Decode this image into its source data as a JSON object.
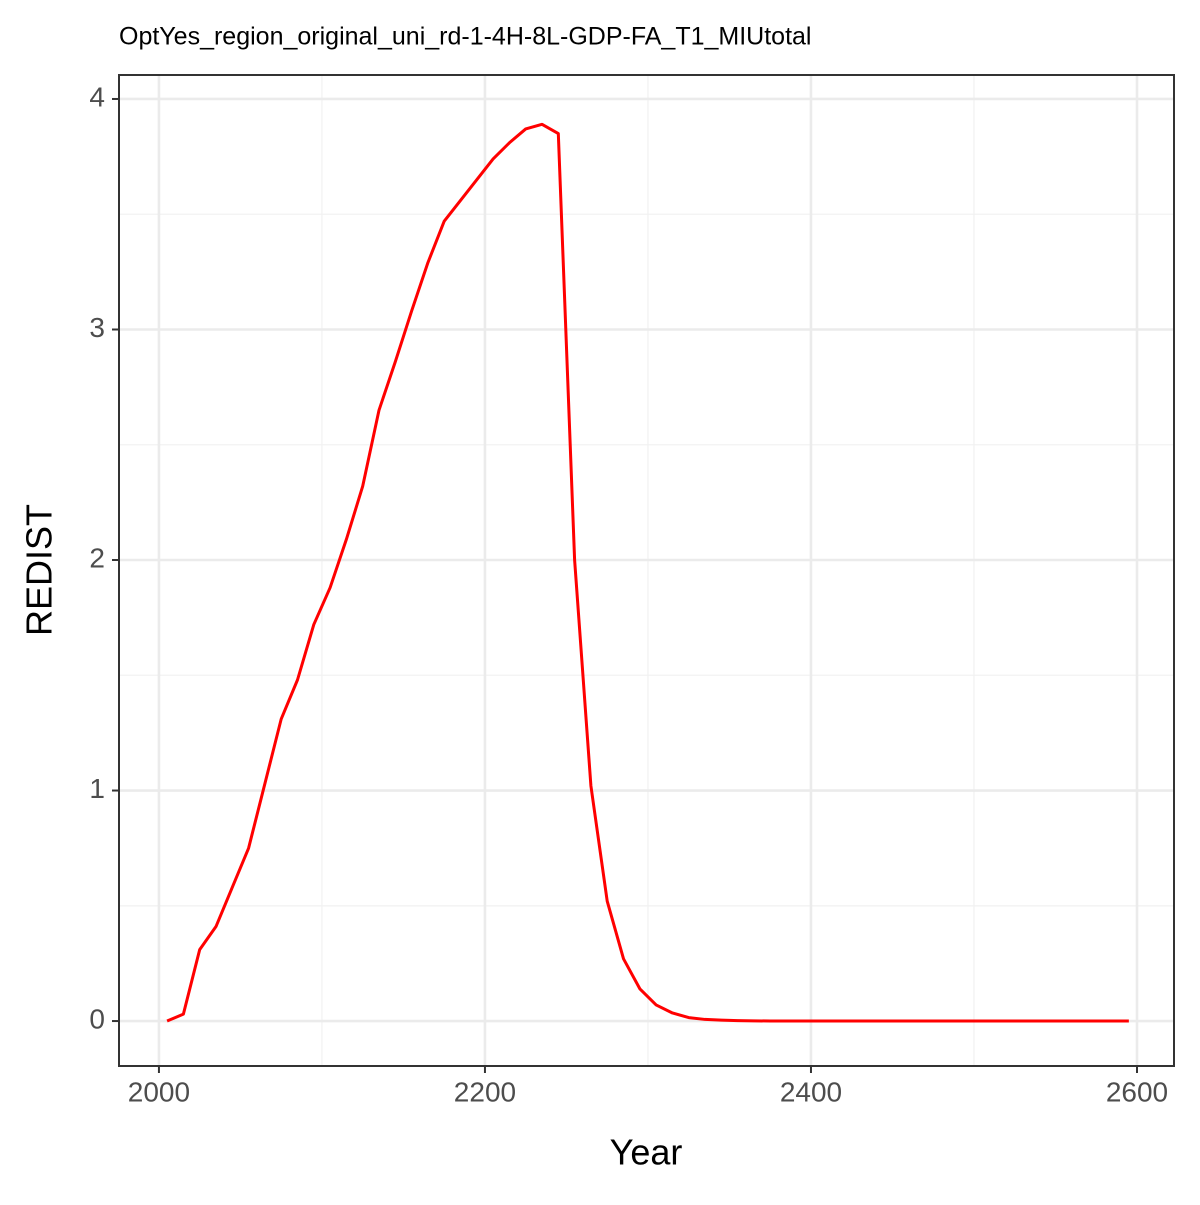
{
  "chart_data": {
    "type": "line",
    "title": "OptYes_region_original_uni_rd-1-4H-8L-GDP-FA_T1_MIUtotal",
    "x_label": "Year",
    "y_label": "REDIST",
    "x": [
      2005,
      2015,
      2025,
      2035,
      2045,
      2055,
      2065,
      2075,
      2085,
      2095,
      2105,
      2115,
      2125,
      2135,
      2145,
      2155,
      2165,
      2175,
      2185,
      2195,
      2205,
      2215,
      2225,
      2235,
      2245,
      2255,
      2265,
      2275,
      2285,
      2295,
      2305,
      2315,
      2325,
      2335,
      2345,
      2355,
      2365,
      2375,
      2385,
      2395,
      2405,
      2415,
      2425,
      2435,
      2445,
      2455,
      2465,
      2475,
      2485,
      2495,
      2505,
      2515,
      2525,
      2535,
      2545,
      2555,
      2565,
      2575,
      2585,
      2595
    ],
    "series": [
      {
        "color": "#ff0000",
        "values": [
          0,
          0.03,
          0.31,
          0.41,
          0.58,
          0.75,
          1.03,
          1.31,
          1.48,
          1.72,
          1.88,
          2.09,
          2.32,
          2.65,
          2.86,
          3.08,
          3.29,
          3.47,
          3.56,
          3.65,
          3.74,
          3.81,
          3.87,
          3.89,
          3.85,
          2.0,
          1.02,
          0.52,
          0.27,
          0.14,
          0.07,
          0.035,
          0.015,
          0.007,
          0.004,
          0.002,
          0.001,
          0,
          0,
          0,
          0,
          0,
          0,
          0,
          0,
          0,
          0,
          0,
          0,
          0,
          0,
          0,
          0,
          0,
          0,
          0,
          0,
          0,
          0,
          0
        ]
      }
    ],
    "xlim": [
      1975.5,
      2622.7
    ],
    "ylim": [
      -0.195,
      4.104
    ],
    "xticks": [
      2000,
      2200,
      2400,
      2600
    ],
    "yticks": [
      0,
      1,
      2,
      3,
      4
    ],
    "x_minor_grid": [
      2100,
      2300,
      2500
    ],
    "y_minor_grid": [
      0.5,
      1.5,
      2.5,
      3.5
    ],
    "grid": true
  }
}
